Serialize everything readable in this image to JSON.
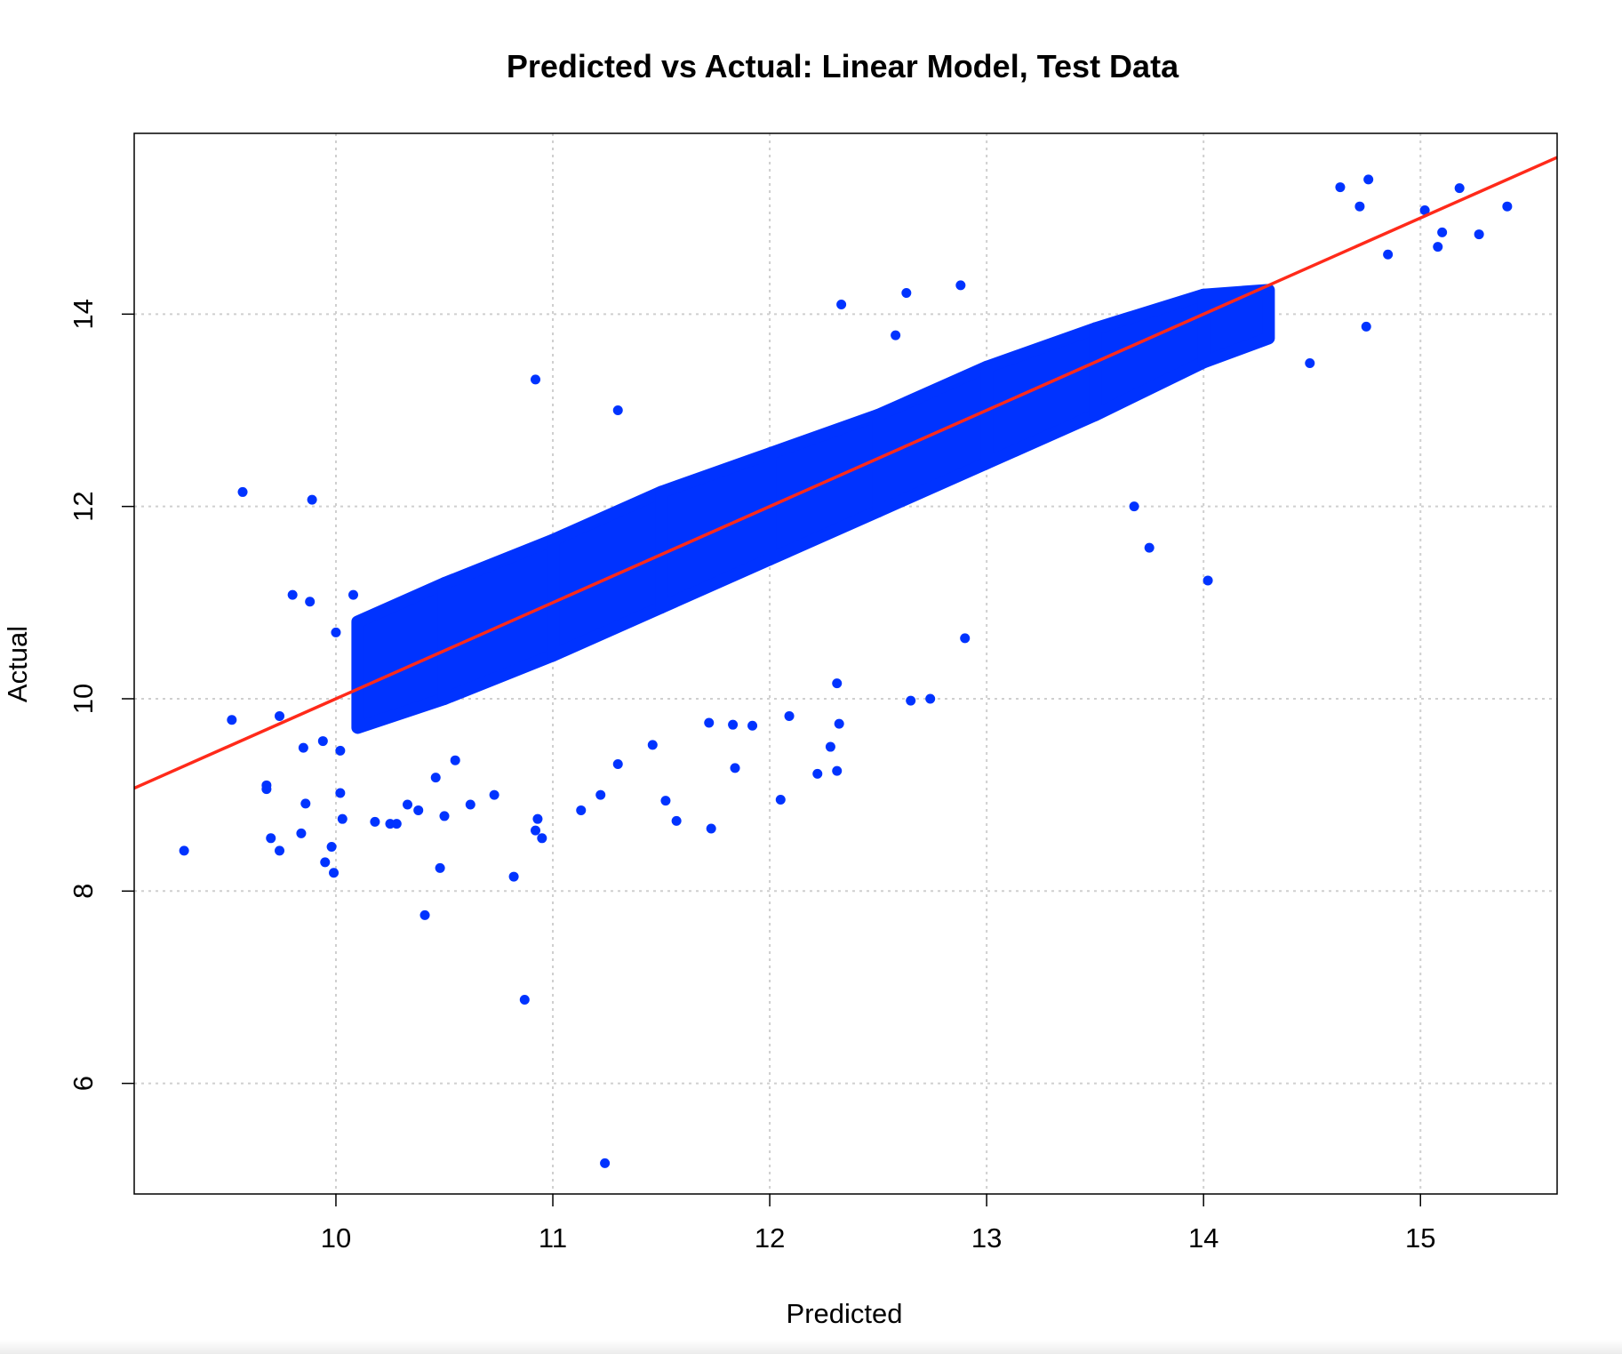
{
  "chart_data": {
    "type": "scatter",
    "title": "Predicted vs Actual: Linear Model, Test Data",
    "xlabel": "Predicted",
    "ylabel": "Actual",
    "xlim": [
      9.07,
      15.63
    ],
    "ylim": [
      4.85,
      15.88
    ],
    "x_ticks": [
      10,
      11,
      12,
      13,
      14,
      15
    ],
    "y_ticks": [
      6,
      8,
      10,
      12,
      14
    ],
    "grid": true,
    "grid_style": "dotted",
    "legend": "none",
    "point_color": "#0033FF",
    "line_color": "#FF2A1A",
    "reference_line": {
      "type": "identity",
      "intercept": 0,
      "slope": 1
    },
    "points": [
      [
        9.3,
        8.42
      ],
      [
        9.52,
        9.78
      ],
      [
        9.57,
        12.15
      ],
      [
        9.68,
        9.06
      ],
      [
        9.68,
        9.1
      ],
      [
        9.7,
        8.55
      ],
      [
        9.74,
        8.42
      ],
      [
        9.74,
        9.82
      ],
      [
        9.8,
        11.08
      ],
      [
        9.84,
        8.6
      ],
      [
        9.85,
        9.49
      ],
      [
        9.86,
        8.91
      ],
      [
        9.88,
        11.01
      ],
      [
        9.89,
        12.07
      ],
      [
        9.94,
        9.56
      ],
      [
        9.95,
        8.3
      ],
      [
        9.98,
        8.46
      ],
      [
        9.99,
        8.19
      ],
      [
        10.0,
        10.69
      ],
      [
        10.02,
        9.02
      ],
      [
        10.02,
        9.46
      ],
      [
        10.03,
        8.75
      ],
      [
        10.08,
        11.08
      ],
      [
        10.18,
        8.72
      ],
      [
        10.25,
        8.7
      ],
      [
        10.28,
        8.7
      ],
      [
        10.33,
        8.9
      ],
      [
        10.38,
        8.84
      ],
      [
        10.41,
        7.75
      ],
      [
        10.46,
        9.18
      ],
      [
        10.48,
        8.24
      ],
      [
        10.5,
        8.78
      ],
      [
        10.55,
        9.36
      ],
      [
        10.62,
        8.9
      ],
      [
        10.73,
        9.0
      ],
      [
        10.82,
        8.15
      ],
      [
        10.87,
        6.87
      ],
      [
        10.92,
        8.63
      ],
      [
        10.93,
        8.75
      ],
      [
        10.95,
        8.55
      ],
      [
        11.13,
        8.84
      ],
      [
        11.22,
        9.0
      ],
      [
        11.24,
        5.17
      ],
      [
        11.3,
        9.32
      ],
      [
        11.46,
        9.52
      ],
      [
        11.52,
        8.94
      ],
      [
        11.57,
        8.73
      ],
      [
        11.72,
        9.75
      ],
      [
        11.73,
        8.65
      ],
      [
        11.84,
        9.28
      ],
      [
        11.83,
        9.73
      ],
      [
        11.92,
        9.72
      ],
      [
        12.05,
        8.95
      ],
      [
        12.09,
        9.82
      ],
      [
        12.22,
        9.22
      ],
      [
        12.28,
        9.5
      ],
      [
        12.31,
        9.25
      ],
      [
        12.32,
        9.74
      ],
      [
        12.31,
        10.16
      ],
      [
        12.65,
        9.98
      ],
      [
        12.74,
        10.0
      ],
      [
        12.9,
        10.63
      ],
      [
        13.75,
        11.57
      ],
      [
        14.02,
        11.23
      ],
      [
        13.68,
        12.0
      ],
      [
        12.58,
        13.78
      ],
      [
        11.3,
        13.0
      ],
      [
        10.92,
        13.32
      ],
      [
        12.33,
        14.1
      ],
      [
        12.63,
        14.22
      ],
      [
        12.88,
        14.3
      ],
      [
        15.02,
        15.08
      ],
      [
        15.18,
        15.31
      ],
      [
        15.1,
        14.85
      ],
      [
        15.08,
        14.7
      ],
      [
        15.27,
        14.83
      ],
      [
        15.4,
        15.12
      ],
      [
        14.76,
        15.4
      ],
      [
        14.63,
        15.32
      ],
      [
        14.49,
        13.49
      ],
      [
        14.75,
        13.87
      ],
      [
        14.85,
        14.62
      ],
      [
        14.72,
        15.12
      ]
    ]
  }
}
